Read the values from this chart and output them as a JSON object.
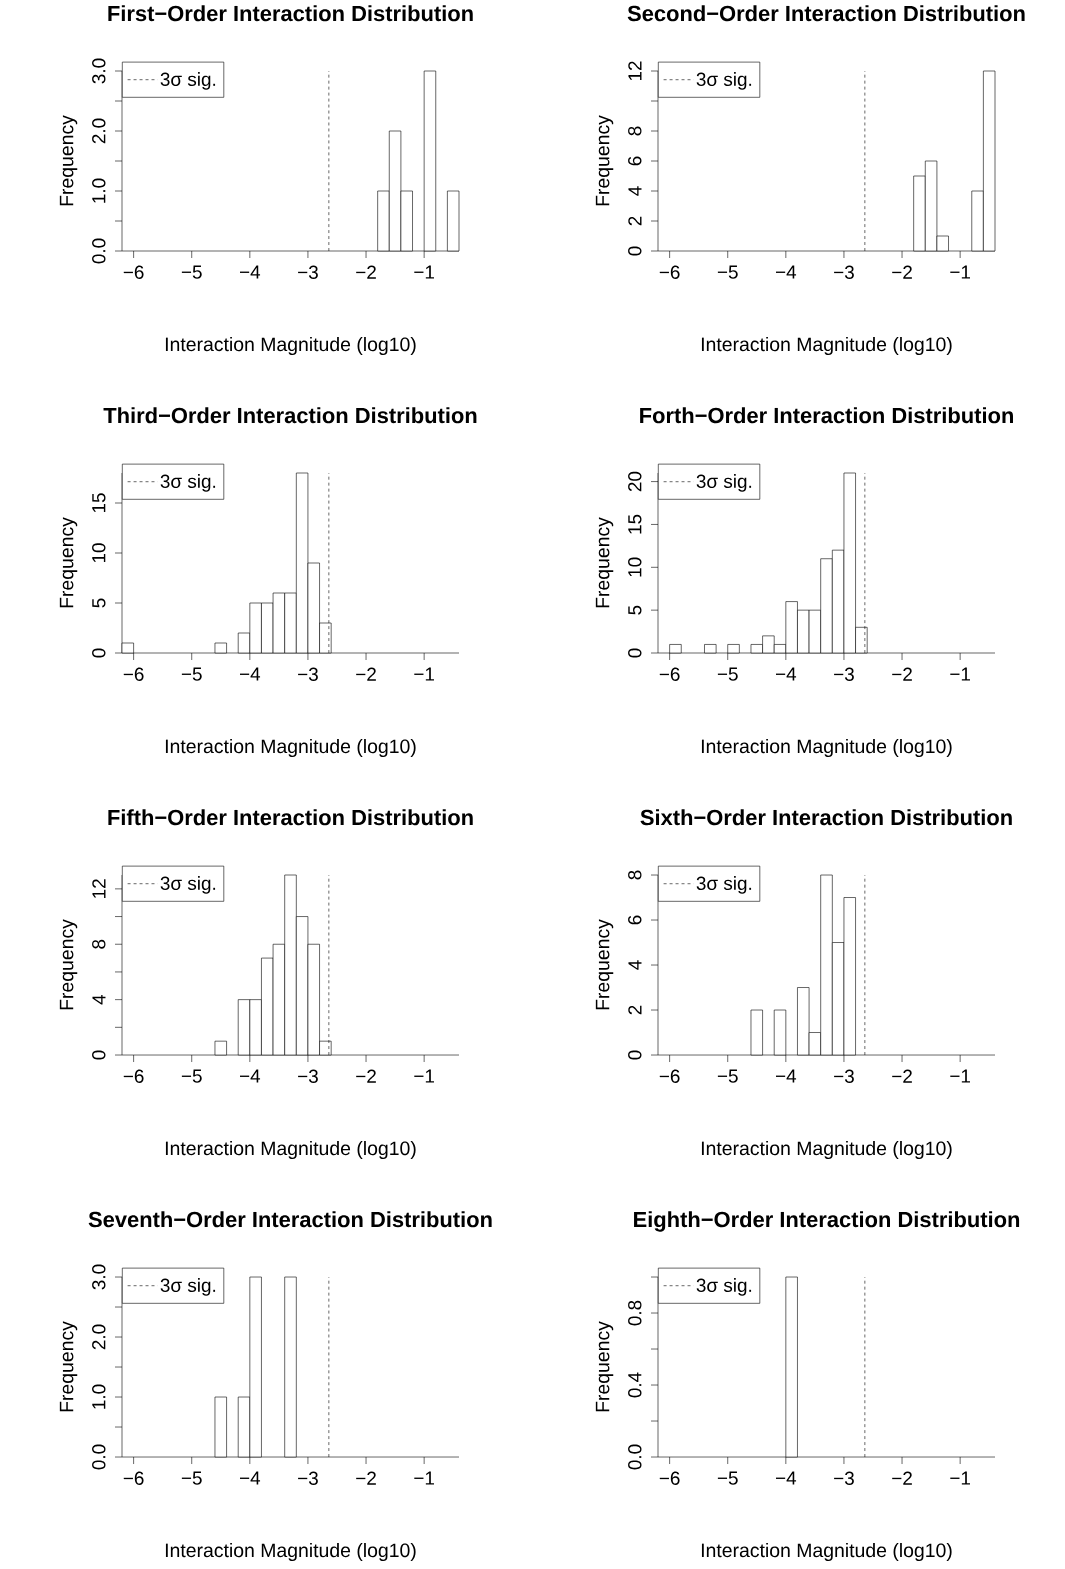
{
  "chart_data": [
    {
      "type": "histogram",
      "title": "First−Order Interaction Distribution",
      "xlabel": "Interaction Magnitude (log10)",
      "ylabel": "Frequency",
      "color": "#ffffff",
      "legend": "top left",
      "bins": [
        -6.2,
        -6,
        -5.8,
        -5.6,
        -5.4,
        -5.2,
        -5,
        -4.8,
        -4.6,
        -4.4,
        -4.2,
        -4,
        -3.8,
        -3.6,
        -3.4,
        -3.2,
        -3,
        -2.8,
        -2.6,
        -2.4,
        -2.2,
        -2,
        -1.8,
        -1.6,
        -1.4,
        -1.2,
        -1,
        -0.8,
        -0.6,
        -0.4
      ],
      "values": [
        0,
        0,
        0,
        0,
        0,
        0,
        0,
        0,
        0,
        0,
        0,
        0,
        0,
        0,
        0,
        0,
        0,
        0,
        0,
        0,
        0,
        0,
        1,
        2,
        1,
        0,
        3,
        0,
        1
      ],
      "xlim": [
        -6.2,
        -0.4
      ],
      "ylim": [
        0,
        3
      ],
      "xticks": [
        {
          "value": -6,
          "label": "−6"
        },
        {
          "value": -5,
          "label": "−5"
        },
        {
          "value": -4,
          "label": "−4"
        },
        {
          "value": -3,
          "label": "−3"
        },
        {
          "value": -2,
          "label": "−2"
        },
        {
          "value": -1,
          "label": "−1"
        }
      ],
      "yticks": [
        {
          "value": 0,
          "label": "0.0"
        },
        {
          "value": 0.5,
          "label": null
        },
        {
          "value": 1,
          "label": "1.0"
        },
        {
          "value": 1.5,
          "label": null
        },
        {
          "value": 2,
          "label": "2.0"
        },
        {
          "value": 2.5,
          "label": null
        },
        {
          "value": 3,
          "label": "3.0"
        }
      ],
      "ref_lines": [
        {
          "axis": "x",
          "value": -2.64,
          "label": "3σ sig.",
          "line_style": "dashed",
          "color": "#000000"
        }
      ]
    },
    {
      "type": "histogram",
      "title": "Second−Order Interaction Distribution",
      "xlabel": "Interaction Magnitude (log10)",
      "ylabel": "Frequency",
      "color": "#ffffff",
      "legend": "top left",
      "bins": [
        -6.2,
        -6,
        -5.8,
        -5.6,
        -5.4,
        -5.2,
        -5,
        -4.8,
        -4.6,
        -4.4,
        -4.2,
        -4,
        -3.8,
        -3.6,
        -3.4,
        -3.2,
        -3,
        -2.8,
        -2.6,
        -2.4,
        -2.2,
        -2,
        -1.8,
        -1.6,
        -1.4,
        -1.2,
        -1,
        -0.8,
        -0.6,
        -0.4
      ],
      "values": [
        0,
        0,
        0,
        0,
        0,
        0,
        0,
        0,
        0,
        0,
        0,
        0,
        0,
        0,
        0,
        0,
        0,
        0,
        0,
        0,
        0,
        0,
        5,
        6,
        1,
        0,
        0,
        4,
        12
      ],
      "xlim": [
        -6.2,
        -0.4
      ],
      "ylim": [
        0,
        12
      ],
      "xticks": [
        {
          "value": -6,
          "label": "−6"
        },
        {
          "value": -5,
          "label": "−5"
        },
        {
          "value": -4,
          "label": "−4"
        },
        {
          "value": -3,
          "label": "−3"
        },
        {
          "value": -2,
          "label": "−2"
        },
        {
          "value": -1,
          "label": "−1"
        }
      ],
      "yticks": [
        0,
        2,
        4,
        6,
        8,
        {
          "value": 10,
          "label": null
        },
        12
      ],
      "ref_lines": [
        {
          "axis": "x",
          "value": -2.64,
          "label": "3σ sig.",
          "line_style": "dashed",
          "color": "#000000"
        }
      ]
    },
    {
      "type": "histogram",
      "title": "Third−Order Interaction Distribution",
      "xlabel": "Interaction Magnitude (log10)",
      "ylabel": "Frequency",
      "color": "#ffffff",
      "legend": "top left",
      "bins": [
        -6.2,
        -6,
        -5.8,
        -5.6,
        -5.4,
        -5.2,
        -5,
        -4.8,
        -4.6,
        -4.4,
        -4.2,
        -4,
        -3.8,
        -3.6,
        -3.4,
        -3.2,
        -3,
        -2.8,
        -2.6,
        -2.4,
        -2.2,
        -2,
        -1.8,
        -1.6,
        -1.4,
        -1.2,
        -1,
        -0.8,
        -0.6,
        -0.4
      ],
      "values": [
        1,
        0,
        0,
        0,
        0,
        0,
        0,
        0,
        1,
        0,
        2,
        5,
        5,
        6,
        6,
        18,
        9,
        3,
        0,
        0,
        0,
        0,
        0,
        0,
        0,
        0,
        0,
        0,
        0
      ],
      "xlim": [
        -6.2,
        -0.4
      ],
      "ylim": [
        0,
        18
      ],
      "xticks": [
        {
          "value": -6,
          "label": "−6"
        },
        {
          "value": -5,
          "label": "−5"
        },
        {
          "value": -4,
          "label": "−4"
        },
        {
          "value": -3,
          "label": "−3"
        },
        {
          "value": -2,
          "label": "−2"
        },
        {
          "value": -1,
          "label": "−1"
        }
      ],
      "yticks": [
        0,
        5,
        10,
        15
      ],
      "ref_lines": [
        {
          "axis": "x",
          "value": -2.64,
          "label": "3σ sig.",
          "line_style": "dashed",
          "color": "#000000"
        }
      ]
    },
    {
      "type": "histogram",
      "title": "Forth−Order Interaction Distribution",
      "xlabel": "Interaction Magnitude (log10)",
      "ylabel": "Frequency",
      "color": "#ffffff",
      "legend": "top left",
      "bins": [
        -6.2,
        -6,
        -5.8,
        -5.6,
        -5.4,
        -5.2,
        -5,
        -4.8,
        -4.6,
        -4.4,
        -4.2,
        -4,
        -3.8,
        -3.6,
        -3.4,
        -3.2,
        -3,
        -2.8,
        -2.6,
        -2.4,
        -2.2,
        -2,
        -1.8,
        -1.6,
        -1.4,
        -1.2,
        -1,
        -0.8,
        -0.6,
        -0.4
      ],
      "values": [
        0,
        1,
        0,
        0,
        1,
        0,
        1,
        0,
        1,
        2,
        1,
        6,
        5,
        5,
        11,
        12,
        21,
        3,
        0,
        0,
        0,
        0,
        0,
        0,
        0,
        0,
        0,
        0,
        0
      ],
      "xlim": [
        -6.2,
        -0.4
      ],
      "ylim": [
        0,
        21
      ],
      "xticks": [
        {
          "value": -6,
          "label": "−6"
        },
        {
          "value": -5,
          "label": "−5"
        },
        {
          "value": -4,
          "label": "−4"
        },
        {
          "value": -3,
          "label": "−3"
        },
        {
          "value": -2,
          "label": "−2"
        },
        {
          "value": -1,
          "label": "−1"
        }
      ],
      "yticks": [
        0,
        5,
        10,
        15,
        20
      ],
      "ref_lines": [
        {
          "axis": "x",
          "value": -2.64,
          "label": "3σ sig.",
          "line_style": "dashed",
          "color": "#000000"
        }
      ]
    },
    {
      "type": "histogram",
      "title": "Fifth−Order Interaction Distribution",
      "xlabel": "Interaction Magnitude (log10)",
      "ylabel": "Frequency",
      "color": "#ffffff",
      "legend": "top left",
      "bins": [
        -6.2,
        -6,
        -5.8,
        -5.6,
        -5.4,
        -5.2,
        -5,
        -4.8,
        -4.6,
        -4.4,
        -4.2,
        -4,
        -3.8,
        -3.6,
        -3.4,
        -3.2,
        -3,
        -2.8,
        -2.6,
        -2.4,
        -2.2,
        -2,
        -1.8,
        -1.6,
        -1.4,
        -1.2,
        -1,
        -0.8,
        -0.6,
        -0.4
      ],
      "values": [
        0,
        0,
        0,
        0,
        0,
        0,
        0,
        0,
        1,
        0,
        4,
        4,
        7,
        8,
        13,
        10,
        8,
        1,
        0,
        0,
        0,
        0,
        0,
        0,
        0,
        0,
        0,
        0,
        0
      ],
      "xlim": [
        -6.2,
        -0.4
      ],
      "ylim": [
        0,
        13
      ],
      "xticks": [
        {
          "value": -6,
          "label": "−6"
        },
        {
          "value": -5,
          "label": "−5"
        },
        {
          "value": -4,
          "label": "−4"
        },
        {
          "value": -3,
          "label": "−3"
        },
        {
          "value": -2,
          "label": "−2"
        },
        {
          "value": -1,
          "label": "−1"
        }
      ],
      "yticks": [
        0,
        {
          "value": 2,
          "label": null
        },
        4,
        {
          "value": 6,
          "label": null
        },
        8,
        {
          "value": 10,
          "label": null
        },
        12
      ],
      "ref_lines": [
        {
          "axis": "x",
          "value": -2.64,
          "label": "3σ sig.",
          "line_style": "dashed",
          "color": "#000000"
        }
      ]
    },
    {
      "type": "histogram",
      "title": "Sixth−Order Interaction Distribution",
      "xlabel": "Interaction Magnitude (log10)",
      "ylabel": "Frequency",
      "color": "#ffffff",
      "legend": "top left",
      "bins": [
        -6.2,
        -6,
        -5.8,
        -5.6,
        -5.4,
        -5.2,
        -5,
        -4.8,
        -4.6,
        -4.4,
        -4.2,
        -4,
        -3.8,
        -3.6,
        -3.4,
        -3.2,
        -3,
        -2.8,
        -2.6,
        -2.4,
        -2.2,
        -2,
        -1.8,
        -1.6,
        -1.4,
        -1.2,
        -1,
        -0.8,
        -0.6,
        -0.4
      ],
      "values": [
        0,
        0,
        0,
        0,
        0,
        0,
        0,
        0,
        2,
        0,
        2,
        0,
        3,
        1,
        8,
        5,
        7,
        0,
        0,
        0,
        0,
        0,
        0,
        0,
        0,
        0,
        0,
        0,
        0
      ],
      "xlim": [
        -6.2,
        -0.4
      ],
      "ylim": [
        0,
        8
      ],
      "xticks": [
        {
          "value": -6,
          "label": "−6"
        },
        {
          "value": -5,
          "label": "−5"
        },
        {
          "value": -4,
          "label": "−4"
        },
        {
          "value": -3,
          "label": "−3"
        },
        {
          "value": -2,
          "label": "−2"
        },
        {
          "value": -1,
          "label": "−1"
        }
      ],
      "yticks": [
        0,
        2,
        4,
        6,
        8
      ],
      "ref_lines": [
        {
          "axis": "x",
          "value": -2.64,
          "label": "3σ sig.",
          "line_style": "dashed",
          "color": "#000000"
        }
      ]
    },
    {
      "type": "histogram",
      "title": "Seventh−Order Interaction Distribution",
      "xlabel": "Interaction Magnitude (log10)",
      "ylabel": "Frequency",
      "color": "#ffffff",
      "legend": "top left",
      "bins": [
        -6.2,
        -6,
        -5.8,
        -5.6,
        -5.4,
        -5.2,
        -5,
        -4.8,
        -4.6,
        -4.4,
        -4.2,
        -4,
        -3.8,
        -3.6,
        -3.4,
        -3.2,
        -3,
        -2.8,
        -2.6,
        -2.4,
        -2.2,
        -2,
        -1.8,
        -1.6,
        -1.4,
        -1.2,
        -1,
        -0.8,
        -0.6,
        -0.4
      ],
      "values": [
        0,
        0,
        0,
        0,
        0,
        0,
        0,
        0,
        1,
        0,
        1,
        3,
        0,
        0,
        3,
        0,
        0,
        0,
        0,
        0,
        0,
        0,
        0,
        0,
        0,
        0,
        0,
        0,
        0
      ],
      "xlim": [
        -6.2,
        -0.4
      ],
      "ylim": [
        0,
        3
      ],
      "xticks": [
        {
          "value": -6,
          "label": "−6"
        },
        {
          "value": -5,
          "label": "−5"
        },
        {
          "value": -4,
          "label": "−4"
        },
        {
          "value": -3,
          "label": "−3"
        },
        {
          "value": -2,
          "label": "−2"
        },
        {
          "value": -1,
          "label": "−1"
        }
      ],
      "yticks": [
        {
          "value": 0,
          "label": "0.0"
        },
        {
          "value": 0.5,
          "label": null
        },
        {
          "value": 1,
          "label": "1.0"
        },
        {
          "value": 1.5,
          "label": null
        },
        {
          "value": 2,
          "label": "2.0"
        },
        {
          "value": 2.5,
          "label": null
        },
        {
          "value": 3,
          "label": "3.0"
        }
      ],
      "ref_lines": [
        {
          "axis": "x",
          "value": -2.64,
          "label": "3σ sig.",
          "line_style": "dashed",
          "color": "#000000"
        }
      ]
    },
    {
      "type": "histogram",
      "title": "Eighth−Order Interaction Distribution",
      "xlabel": "Interaction Magnitude (log10)",
      "ylabel": "Frequency",
      "color": "#ffffff",
      "legend": "top left",
      "bins": [
        -6.2,
        -6,
        -5.8,
        -5.6,
        -5.4,
        -5.2,
        -5,
        -4.8,
        -4.6,
        -4.4,
        -4.2,
        -4,
        -3.8,
        -3.6,
        -3.4,
        -3.2,
        -3,
        -2.8,
        -2.6,
        -2.4,
        -2.2,
        -2,
        -1.8,
        -1.6,
        -1.4,
        -1.2,
        -1,
        -0.8,
        -0.6,
        -0.4
      ],
      "values": [
        0,
        0,
        0,
        0,
        0,
        0,
        0,
        0,
        0,
        0,
        0,
        1,
        0,
        0,
        0,
        0,
        0,
        0,
        0,
        0,
        0,
        0,
        0,
        0,
        0,
        0,
        0,
        0,
        0
      ],
      "xlim": [
        -6.2,
        -0.4
      ],
      "ylim": [
        0,
        1
      ],
      "xticks": [
        {
          "value": -6,
          "label": "−6"
        },
        {
          "value": -5,
          "label": "−5"
        },
        {
          "value": -4,
          "label": "−4"
        },
        {
          "value": -3,
          "label": "−3"
        },
        {
          "value": -2,
          "label": "−2"
        },
        {
          "value": -1,
          "label": "−1"
        }
      ],
      "yticks": [
        {
          "value": 0,
          "label": "0.0"
        },
        {
          "value": 0.2,
          "label": null
        },
        {
          "value": 0.4,
          "label": "0.4"
        },
        {
          "value": 0.6,
          "label": null
        },
        {
          "value": 0.8,
          "label": "0.8"
        },
        {
          "value": 1,
          "label": null
        }
      ],
      "ref_lines": [
        {
          "axis": "x",
          "value": -2.64,
          "label": "3σ sig.",
          "line_style": "dashed",
          "color": "#000000"
        }
      ]
    }
  ]
}
